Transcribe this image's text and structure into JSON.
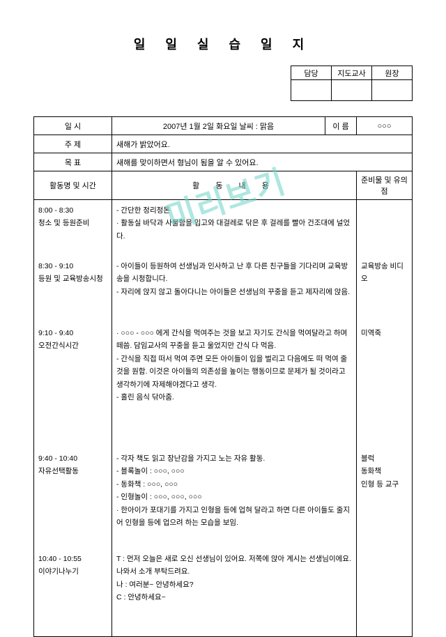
{
  "title": "일 일 실 습 일 지",
  "approval": {
    "c1": "담당",
    "c2": "지도교사",
    "c3": "원장"
  },
  "meta": {
    "date_label": "일 시",
    "date_value": "2007년  1월  2일  화요일  날씨 : 맑음",
    "name_label": "이 름",
    "name_value": "○○○",
    "subject_label": "주 제",
    "subject_value": "새해가 밝았어요.",
    "goal_label": "목 표",
    "goal_value": "새해를 맞이하면서 형님이 됨을 알 수 있어요."
  },
  "section": {
    "col1": "활동명 및 시간",
    "col2": "활 동 내 용",
    "col3": "준비물 및 유의점"
  },
  "rows": [
    {
      "time": "8:00 - 8:30",
      "label": "청소 및 등원준비",
      "content": "- 간단한 정리정돈\n · 활동실 바닥과 사물함을 입고와 대걸레로 닦은 후 걸레를 빨아 건조대에 널었다.",
      "prep": ""
    },
    {
      "time": "8:30 - 9:10",
      "label": "등원 및 교육방송시청",
      "content": "- 아이들이 등원하여 선생님과 인사하고 난 후 다른 친구들을 기다리며 교육방송을 시청합니다.\n- 자리에 앉지 않고 돌아다니는 아이들은 선생님의 꾸중을 듣고 제자리에 앉음.",
      "prep": "교육방송 비디오"
    },
    {
      "time": "9:10 - 9:40",
      "label": "오전간식시간",
      "content": "· ○○○  -  ○○○ 에게 간식을 먹여주는 것을 보고 자기도 간식을 먹여달라고 하며 떼씀. 담임교사의 꾸중을 듣고 울었지만 간식 다 먹음.\n- 간식을 직접 떠서 먹여 주면 모든 아이들이 입을 벌리고 다음에도 떠 먹여 줄 것을 원함. 이것은 아이들의 의존성을 높이는 행동이므로 문제가 될 것이라고 생각하기에 자제해야겠다고 생각.\n- 흘린 음식 닦아줌.",
      "prep": "미역죽"
    },
    {
      "time": "9:40 - 10:40",
      "label": "자유선택활동",
      "content": "- 각자 책도 읽고 장난감을 가지고 노는 자유 활동.\n- 블록놀이 :  ○○○,  ○○○\n- 동화책 : ○○○,  ○○○\n- 인형놀이 :  ○○○,  ○○○,  ○○○\n· 한아이가 포대기를 가지고 인형을 등에 업혀 달라고 하면 다른 아이들도 줄지어 인형을 등에 업으려 하는 모습을 보임.",
      "prep": "블럭\n동화책\n인형 등 교구"
    },
    {
      "time": "10:40 - 10:55",
      "label": "이야기나누기",
      "content": "T :  먼저 오늘은 새로 오신 선생님이 있어요. 저쪽에 앉아 계시는 선생님이에요. 나와서 소개 부탁드려요.\n나 : 여러분~ 안녕하세요?\nC : 안녕하세요~",
      "prep": ""
    }
  ],
  "watermark": "미리보기"
}
